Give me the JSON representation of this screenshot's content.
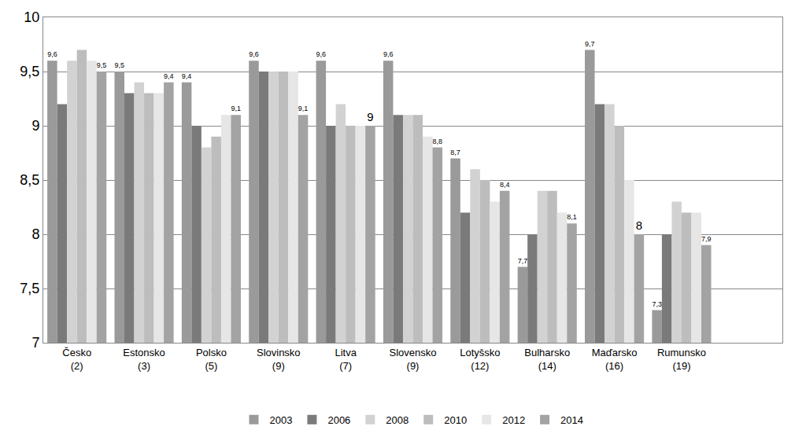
{
  "chart_data": {
    "type": "bar",
    "categories": [
      "Česko\n(2)",
      "Estonsko\n(3)",
      "Polsko\n(5)",
      "Slovinsko\n(9)",
      "Litva\n(7)",
      "Slovensko\n(9)",
      "Lotyšsko\n(12)",
      "Bulharsko\n(14)",
      "Maďarsko\n(16)",
      "Rumunsko\n(19)"
    ],
    "series": [
      {
        "name": "2003",
        "color": "#9a9a9a",
        "values": [
          9.6,
          9.5,
          9.4,
          9.6,
          9.6,
          9.6,
          8.7,
          7.7,
          9.7,
          7.3
        ],
        "data_labels": true,
        "value_labels": [
          "9,6",
          "9,5",
          "9,4",
          "9,6",
          "9,6",
          "9,6",
          "8,7",
          "7,7",
          "9,7",
          "7,3"
        ]
      },
      {
        "name": "2006",
        "color": "#7a7a7a",
        "values": [
          9.2,
          9.3,
          9.0,
          9.5,
          9.0,
          9.1,
          8.2,
          8.0,
          9.2,
          8.0
        ]
      },
      {
        "name": "2008",
        "color": "#d2d2d2",
        "values": [
          9.6,
          9.4,
          8.8,
          9.5,
          9.2,
          9.1,
          8.6,
          8.4,
          9.2,
          8.3
        ]
      },
      {
        "name": "2010",
        "color": "#bdbdbd",
        "values": [
          9.7,
          9.3,
          8.9,
          9.5,
          9.0,
          9.1,
          8.5,
          8.4,
          9.0,
          8.2
        ]
      },
      {
        "name": "2012",
        "color": "#e6e6e6",
        "values": [
          9.6,
          9.3,
          9.1,
          9.5,
          9.0,
          8.9,
          8.3,
          8.2,
          8.5,
          8.2
        ]
      },
      {
        "name": "2014",
        "color": "#a3a3a3",
        "values": [
          9.5,
          9.4,
          9.1,
          9.1,
          9.0,
          8.8,
          8.4,
          8.1,
          8.0,
          7.9
        ],
        "data_labels": true,
        "value_labels": [
          "9,5",
          "9,4",
          "9,1",
          "9,1",
          "9",
          "8,8",
          "8,4",
          "8,1",
          "8",
          "7,9"
        ]
      }
    ],
    "ylim": [
      7,
      10
    ],
    "yticks": [
      7,
      {
        "value": 7.5,
        "label": "7,5"
      },
      8,
      {
        "value": 8.5,
        "label": "8,5"
      },
      9,
      {
        "value": 9.5,
        "label": "9,5"
      },
      10
    ],
    "grid": true,
    "legend": "bottom"
  }
}
